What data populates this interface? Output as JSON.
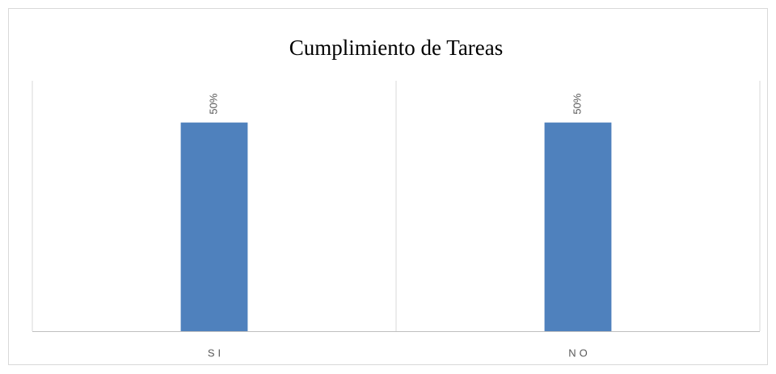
{
  "chart_data": {
    "type": "bar",
    "title": "Cumplimiento de Tareas",
    "categories": [
      "SI",
      "NO"
    ],
    "values": [
      50,
      50
    ],
    "value_labels": [
      "50%",
      "50%"
    ],
    "color": "#4f81bd",
    "ylim": [
      0,
      60
    ]
  }
}
